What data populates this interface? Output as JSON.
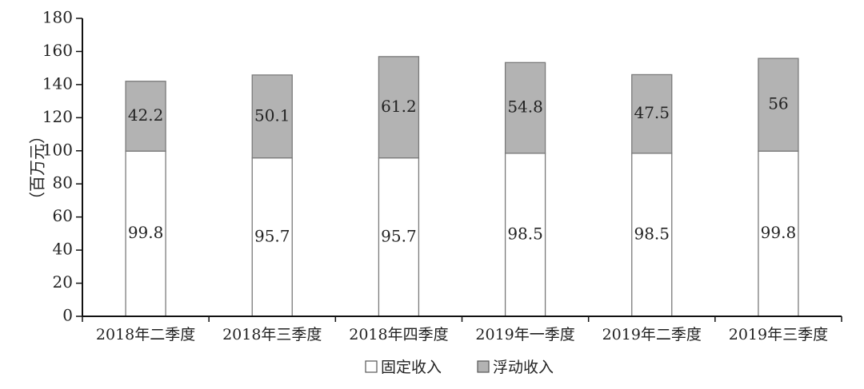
{
  "chart_data": {
    "type": "bar",
    "stacked": true,
    "categories": [
      "2018年二季度",
      "2018年三季度",
      "2018年四季度",
      "2019年一季度",
      "2019年二季度",
      "2019年三季度"
    ],
    "series": [
      {
        "name": "固定收入",
        "values": [
          99.8,
          95.7,
          95.7,
          98.5,
          98.5,
          99.8
        ],
        "color": "#ffffff"
      },
      {
        "name": "浮动收入",
        "values": [
          42.2,
          50.1,
          61.2,
          54.8,
          47.5,
          56
        ],
        "color": "#b3b3b3"
      }
    ],
    "ylabel": "（百万元）",
    "ylim": [
      0,
      180
    ],
    "yticks": [
      0,
      20,
      40,
      60,
      80,
      100,
      120,
      140,
      160,
      180
    ],
    "grid": false,
    "legend": "bottom",
    "data_labels": true
  }
}
